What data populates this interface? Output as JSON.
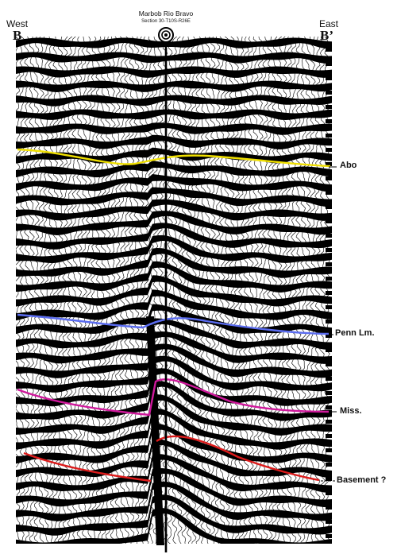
{
  "header": {
    "west_label": "West",
    "east_label": "East",
    "west_end": "B",
    "east_end": "B’",
    "well_name": "Marbob Rio Bravo",
    "well_location": "Section 30-T10S-R26E"
  },
  "horizons": [
    {
      "key": "abo",
      "label": "Abo",
      "color": "#f0e000"
    },
    {
      "key": "penn",
      "label": "Penn Lm.",
      "color": "#5a6cf0"
    },
    {
      "key": "miss",
      "label": "Miss.",
      "color": "#d0189c"
    },
    {
      "key": "basement",
      "label": "Basement ?",
      "color": "#dd1b1b"
    }
  ]
}
